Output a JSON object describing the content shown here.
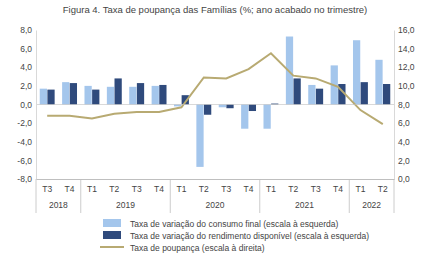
{
  "chart_data": {
    "type": "bar",
    "title": "Figura 4. Taxa de poupança das Famílias (%; ano acabado no trimestre)",
    "categories": [
      "T3",
      "T4",
      "T1",
      "T2",
      "T3",
      "T4",
      "T1",
      "T2",
      "T3",
      "T4",
      "T1",
      "T2",
      "T3",
      "T4",
      "T1",
      "T2"
    ],
    "category_groups": [
      "2018",
      "2018",
      "2019",
      "2019",
      "2019",
      "2019",
      "2020",
      "2020",
      "2020",
      "2020",
      "2021",
      "2021",
      "2021",
      "2021",
      "2022",
      "2022"
    ],
    "series": [
      {
        "name": "Taxa de variação do consumo final (escala à esquerda)",
        "type": "bar",
        "axis": "y",
        "color": "#a4c6ec",
        "values": [
          1.7,
          2.4,
          2.0,
          1.9,
          1.9,
          2.0,
          -0.2,
          -6.7,
          -0.3,
          -2.6,
          -2.6,
          7.3,
          2.1,
          4.2,
          6.9,
          4.8
        ]
      },
      {
        "name": "Taxa de variação do rendimento disponível (escala à esquerda)",
        "type": "bar",
        "axis": "y",
        "color": "#2f4a7c",
        "values": [
          1.6,
          2.3,
          1.6,
          2.8,
          2.3,
          2.1,
          1.0,
          -1.1,
          -0.4,
          -0.7,
          0.1,
          2.8,
          1.7,
          2.2,
          2.4,
          2.2
        ]
      },
      {
        "name": "Taxa de poupança (escala à direita)",
        "type": "line",
        "axis": "y2",
        "color": "#b8aa72",
        "values": [
          6.8,
          6.8,
          6.5,
          7.0,
          7.2,
          7.2,
          7.7,
          10.9,
          10.8,
          11.8,
          13.5,
          11.1,
          10.8,
          9.9,
          7.4,
          5.9
        ]
      }
    ],
    "ylim": [
      -8,
      8
    ],
    "yticks": [
      {
        "value": -8,
        "label": "-8,0"
      },
      {
        "value": -6,
        "label": "-6,0"
      },
      {
        "value": -4,
        "label": "-4,0"
      },
      {
        "value": -2,
        "label": "-2,0"
      },
      {
        "value": 0,
        "label": "0,0"
      },
      {
        "value": 2,
        "label": "2,0"
      },
      {
        "value": 4,
        "label": "4,0"
      },
      {
        "value": 6,
        "label": "6,0"
      },
      {
        "value": 8,
        "label": "8,0"
      }
    ],
    "y2lim": [
      0,
      16
    ],
    "y2ticks": [
      {
        "value": 0,
        "label": "0,0"
      },
      {
        "value": 2,
        "label": "2,0"
      },
      {
        "value": 4,
        "label": "4,0"
      },
      {
        "value": 6,
        "label": "6,0"
      },
      {
        "value": 8,
        "label": "8,0"
      },
      {
        "value": 10,
        "label": "10,0"
      },
      {
        "value": 12,
        "label": "12,0"
      },
      {
        "value": 14,
        "label": "14,0"
      },
      {
        "value": 16,
        "label": "16,0"
      }
    ],
    "grid": false,
    "legend": "bottom"
  }
}
